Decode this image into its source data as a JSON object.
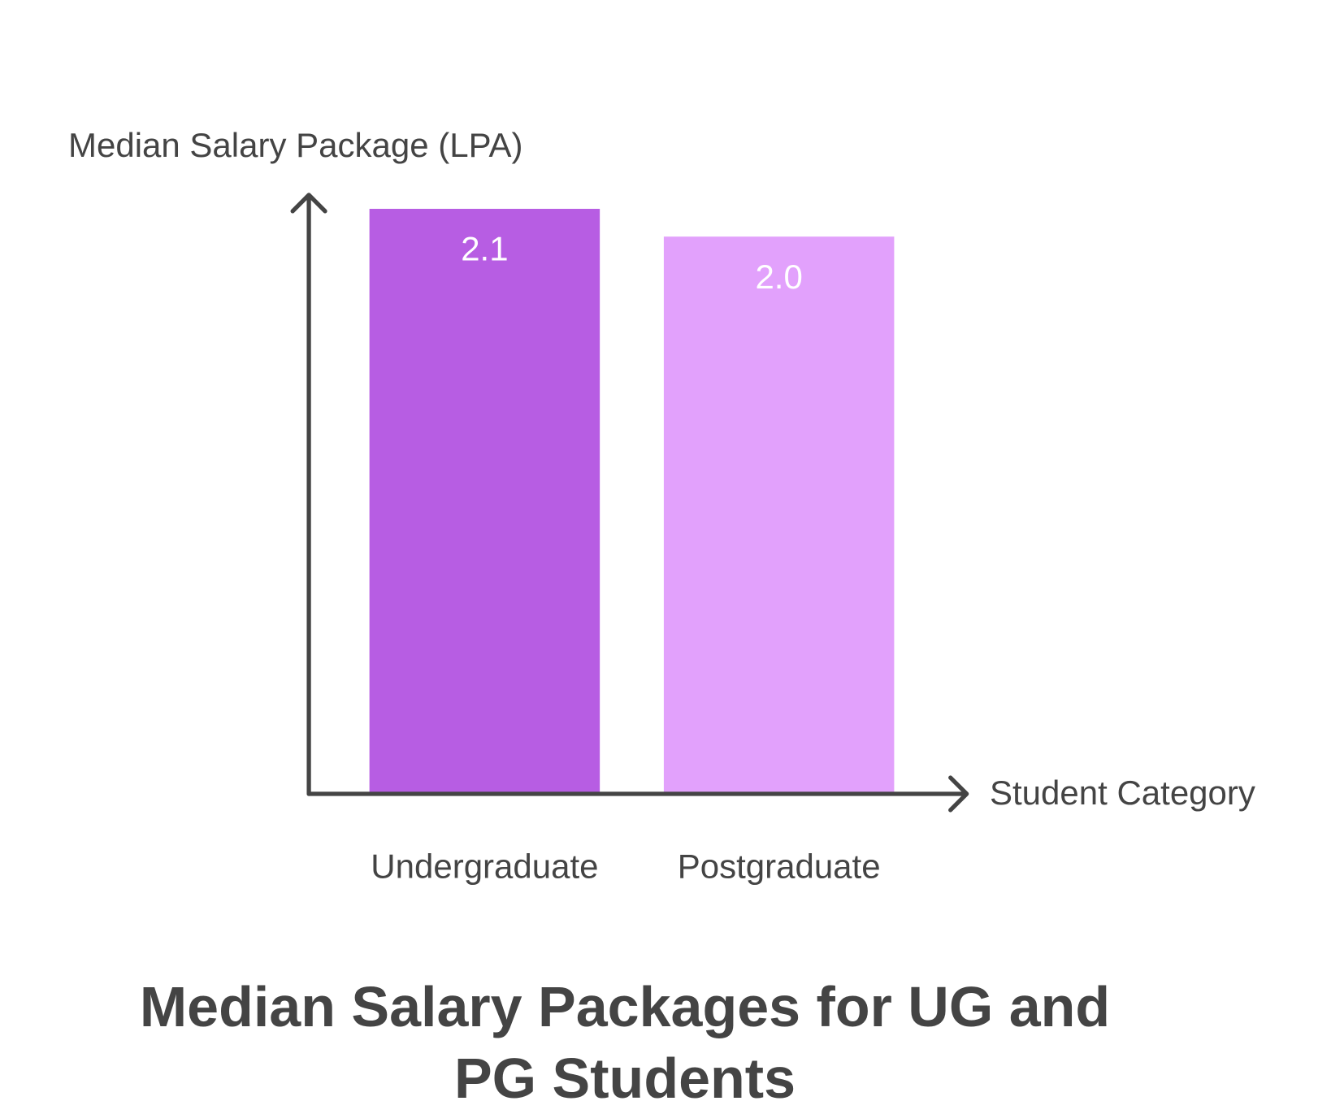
{
  "chart_data": {
    "type": "bar",
    "title": "Median Salary Packages for UG and PG Students",
    "y_label": "Median Salary Package (LPA)",
    "x_label": "Student Category",
    "categories": [
      "Undergraduate",
      "Postgraduate"
    ],
    "values": [
      2.1,
      2.0
    ],
    "value_labels": [
      "2.1",
      "2.0"
    ],
    "colors": [
      "#b75de3",
      "#e2a1fc"
    ],
    "ylim": [
      0,
      2.15
    ]
  }
}
